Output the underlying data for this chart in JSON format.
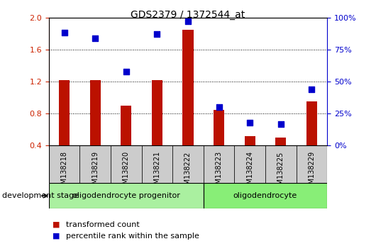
{
  "title": "GDS2379 / 1372544_at",
  "categories": [
    "GSM138218",
    "GSM138219",
    "GSM138220",
    "GSM138221",
    "GSM138222",
    "GSM138223",
    "GSM138224",
    "GSM138225",
    "GSM138229"
  ],
  "bar_values": [
    1.22,
    1.22,
    0.9,
    1.22,
    1.85,
    0.85,
    0.52,
    0.5,
    0.95
  ],
  "percentile_values": [
    88,
    84,
    58,
    87,
    97,
    30,
    18,
    17,
    44
  ],
  "bar_color": "#bb1100",
  "dot_color": "#0000cc",
  "ylim_left": [
    0.4,
    2.0
  ],
  "ylim_right": [
    0,
    100
  ],
  "yticks_left": [
    0.4,
    0.8,
    1.2,
    1.6,
    2.0
  ],
  "yticks_right": [
    0,
    25,
    50,
    75,
    100
  ],
  "grid_values": [
    0.8,
    1.2,
    1.6
  ],
  "group1_label": "oligodendrocyte progenitor",
  "group1_indices": [
    0,
    1,
    2,
    3,
    4
  ],
  "group2_label": "oligodendrocyte",
  "group2_indices": [
    5,
    6,
    7,
    8
  ],
  "stage_label": "development stage",
  "legend_bar_label": "transformed count",
  "legend_dot_label": "percentile rank within the sample",
  "group1_color": "#aaf0a0",
  "group2_color": "#88ee77",
  "left_axis_color": "#cc2200",
  "right_axis_color": "#0000cc",
  "bar_width": 0.35,
  "dot_size": 40,
  "label_box_color": "#cccccc",
  "bg_color": "#ffffff"
}
